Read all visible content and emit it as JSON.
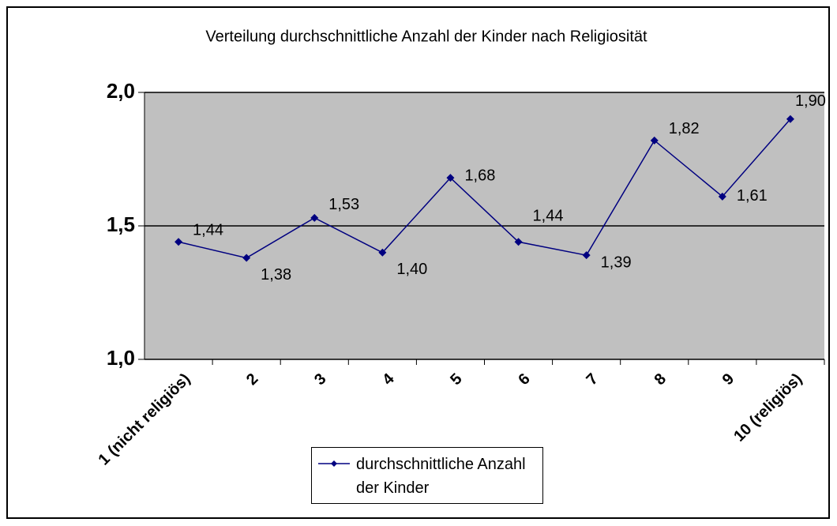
{
  "chart_data": {
    "type": "line",
    "title": "Verteilung durchschnittliche Anzahl der Kinder nach Religiosität",
    "categories": [
      "1 (nicht religiös)",
      "2",
      "3",
      "4",
      "5",
      "6",
      "7",
      "8",
      "9",
      "10 (religiös)"
    ],
    "series": [
      {
        "name": "durchschnittliche Anzahl der Kinder",
        "color": "#000080",
        "values": [
          1.44,
          1.38,
          1.53,
          1.4,
          1.68,
          1.44,
          1.39,
          1.82,
          1.61,
          1.9
        ],
        "value_labels": [
          "1,44",
          "1,38",
          "1,53",
          "1,40",
          "1,68",
          "1,44",
          "1,39",
          "1,82",
          "1,61",
          "1,90"
        ]
      }
    ],
    "ylim": [
      1.0,
      2.0
    ],
    "yticks": [
      {
        "value": 1.0,
        "label": "1,0"
      },
      {
        "value": 1.5,
        "label": "1,5"
      },
      {
        "value": 2.0,
        "label": "2,0"
      }
    ],
    "grid": true,
    "plot_background": "#c0c0c0",
    "legend": "bottom"
  }
}
